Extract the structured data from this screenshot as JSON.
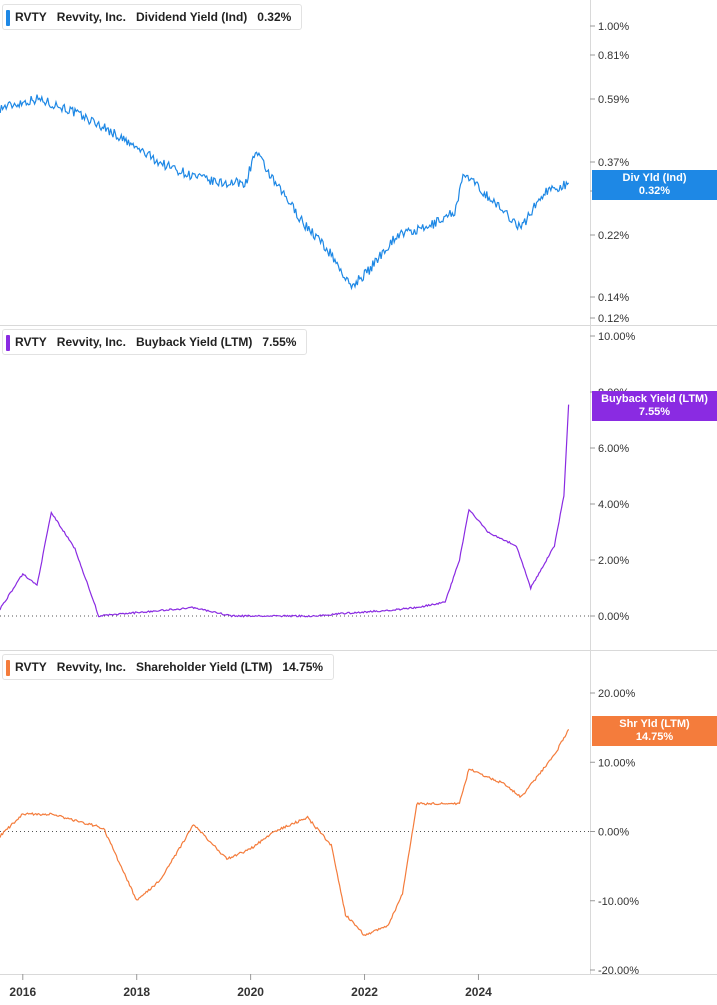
{
  "x_axis": {
    "ticks": [
      "2016",
      "2018",
      "2020",
      "2022",
      "2024"
    ]
  },
  "panels": [
    {
      "ticker": "RVTY",
      "company": "Revvity, Inc.",
      "metric": "Dividend Yield (Ind)",
      "current": "0.32%",
      "color": "#1e88e5",
      "badge_line1": "Div Yld (Ind)",
      "badge_line2": "0.32%",
      "y_ticks": [
        "1.00%",
        "0.81%",
        "0.59%",
        "0.37%",
        "0.30%",
        "0.22%",
        "0.14%",
        "0.12%"
      ]
    },
    {
      "ticker": "RVTY",
      "company": "Revvity, Inc.",
      "metric": "Buyback Yield (LTM)",
      "current": "7.55%",
      "color": "#8a2be2",
      "badge_line1": "Buyback Yield (LTM)",
      "badge_line2": "7.55%",
      "y_ticks": [
        "10.00%",
        "8.00%",
        "6.00%",
        "4.00%",
        "2.00%",
        "0.00%"
      ]
    },
    {
      "ticker": "RVTY",
      "company": "Revvity, Inc.",
      "metric": "Shareholder Yield (LTM)",
      "current": "14.75%",
      "color": "#f47c3c",
      "badge_line1": "Shr Yld (LTM)",
      "badge_line2": "14.75%",
      "y_ticks": [
        "20.00%",
        "10.00%",
        "0.00%",
        "-10.00%",
        "-20.00%"
      ]
    }
  ],
  "chart_data": [
    {
      "type": "line",
      "title": "RVTY Revvity, Inc. Dividend Yield (Ind) 0.32%",
      "ylim": [
        0.12,
        1.0
      ],
      "x": [
        "2015-08",
        "2016-04",
        "2016-10",
        "2017-06",
        "2017-12",
        "2018-06",
        "2018-12",
        "2019-06",
        "2019-12",
        "2020-02",
        "2020-06",
        "2020-12",
        "2021-06",
        "2021-10",
        "2022-02",
        "2022-08",
        "2023-02",
        "2023-08",
        "2023-10",
        "2024-04",
        "2024-10",
        "2025-03",
        "2025-08"
      ],
      "series": [
        {
          "values": [
            0.55,
            0.59,
            0.55,
            0.48,
            0.42,
            0.37,
            0.34,
            0.32,
            0.32,
            0.4,
            0.32,
            0.24,
            0.19,
            0.15,
            0.17,
            0.22,
            0.23,
            0.26,
            0.34,
            0.28,
            0.23,
            0.3,
            0.32
          ]
        }
      ]
    },
    {
      "type": "line",
      "title": "RVTY Revvity, Inc. Buyback Yield (LTM) 7.55%",
      "ylim": [
        0,
        10
      ],
      "x": [
        "2015-08",
        "2016-01",
        "2016-04",
        "2016-07",
        "2016-12",
        "2017-05",
        "2019-01",
        "2019-09",
        "2020-06",
        "2021-03",
        "2021-09",
        "2022-06",
        "2022-12",
        "2023-06",
        "2023-09",
        "2023-11",
        "2024-03",
        "2024-09",
        "2024-12",
        "2025-05",
        "2025-07",
        "2025-08"
      ],
      "series": [
        {
          "values": [
            0.2,
            1.5,
            1.1,
            3.7,
            2.4,
            0.0,
            0.3,
            0.0,
            0.0,
            0.0,
            0.1,
            0.2,
            0.3,
            0.5,
            2.0,
            3.8,
            3.0,
            2.5,
            1.0,
            2.5,
            4.3,
            7.55
          ]
        }
      ]
    },
    {
      "type": "line",
      "title": "RVTY Revvity, Inc. Shareholder Yield (LTM) 14.75%",
      "ylim": [
        -20,
        20
      ],
      "x": [
        "2015-08",
        "2016-01",
        "2016-07",
        "2017-06",
        "2018-01",
        "2018-06",
        "2019-01",
        "2019-08",
        "2020-01",
        "2020-06",
        "2021-01",
        "2021-06",
        "2021-09",
        "2022-01",
        "2022-06",
        "2022-09",
        "2022-12",
        "2023-09",
        "2023-11",
        "2024-06",
        "2024-10",
        "2025-05",
        "2025-08"
      ],
      "series": [
        {
          "values": [
            -0.8,
            2.5,
            2.5,
            0.5,
            -10.0,
            -7.0,
            1.0,
            -4.0,
            -2.5,
            0.0,
            2.0,
            -2.0,
            -12.0,
            -15.0,
            -13.5,
            -9.0,
            4.0,
            4.0,
            9.0,
            7.0,
            5.0,
            11.0,
            14.75
          ]
        }
      ]
    }
  ]
}
